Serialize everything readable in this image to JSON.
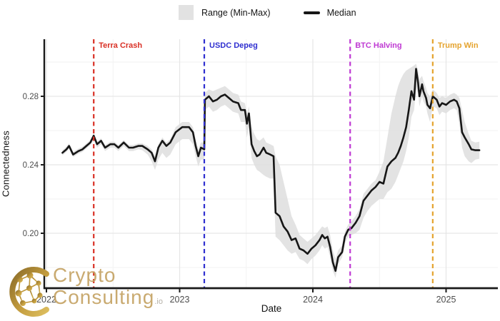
{
  "chart_data": {
    "type": "line",
    "title": "",
    "xlabel": "Date",
    "ylabel": "Connectedness",
    "x_unit": "decimal_year",
    "xlim": [
      2021.98,
      2025.39
    ],
    "ylim": [
      0.168,
      0.313
    ],
    "grid": true,
    "x_ticks": [
      {
        "v": 2022,
        "label": "2022"
      },
      {
        "v": 2023,
        "label": "2023"
      },
      {
        "v": 2024,
        "label": "2024"
      },
      {
        "v": 2025,
        "label": "2025"
      }
    ],
    "x_minor_ticks": [
      2022.5,
      2023.5,
      2024.5
    ],
    "y_ticks": [
      {
        "v": 0.2,
        "label": "0.20"
      },
      {
        "v": 0.24,
        "label": "0.24"
      },
      {
        "v": 0.28,
        "label": "0.28"
      }
    ],
    "y_minor_ticks": [
      0.18,
      0.22,
      0.26,
      0.3
    ],
    "legend": {
      "position": "top",
      "range_label": "Range (Min-Max)",
      "median_label": "Median"
    },
    "style": {
      "median_color": "#161616",
      "band_color": "#dedede",
      "grid_major": "#e6e6e6",
      "grid_minor": "#f2f2f2",
      "axis_color": "#1a1a1a",
      "tick_label_color": "#4d4d4d"
    },
    "events": [
      {
        "label": "Terra Crash",
        "year": 2022.355,
        "color": "#d93025"
      },
      {
        "label": "USDC Depeg",
        "year": 2023.185,
        "color": "#2f2fd0"
      },
      {
        "label": "BTC Halving",
        "year": 2024.28,
        "color": "#bf3ad3"
      },
      {
        "label": "Trump Win",
        "year": 2024.9,
        "color": "#e5a32e"
      }
    ],
    "series_format": [
      "year",
      "min",
      "median",
      "max"
    ],
    "points": [
      [
        2022.12,
        0.2455,
        0.247,
        0.2485
      ],
      [
        2022.15,
        0.2475,
        0.249,
        0.2505
      ],
      [
        2022.17,
        0.2495,
        0.251,
        0.2525
      ],
      [
        2022.2,
        0.2445,
        0.246,
        0.2475
      ],
      [
        2022.24,
        0.2465,
        0.248,
        0.2495
      ],
      [
        2022.27,
        0.2475,
        0.249,
        0.2505
      ],
      [
        2022.3,
        0.2495,
        0.251,
        0.2525
      ],
      [
        2022.33,
        0.2515,
        0.253,
        0.2545
      ],
      [
        2022.355,
        0.255,
        0.257,
        0.2585
      ],
      [
        2022.38,
        0.25,
        0.252,
        0.2535
      ],
      [
        2022.41,
        0.252,
        0.254,
        0.2555
      ],
      [
        2022.44,
        0.248,
        0.25,
        0.2515
      ],
      [
        2022.48,
        0.25,
        0.252,
        0.2535
      ],
      [
        2022.51,
        0.25,
        0.252,
        0.2535
      ],
      [
        2022.54,
        0.248,
        0.25,
        0.2515
      ],
      [
        2022.58,
        0.251,
        0.253,
        0.2545
      ],
      [
        2022.62,
        0.248,
        0.25,
        0.2515
      ],
      [
        2022.65,
        0.248,
        0.25,
        0.2515
      ],
      [
        2022.69,
        0.249,
        0.251,
        0.2525
      ],
      [
        2022.72,
        0.2485,
        0.251,
        0.2525
      ],
      [
        2022.76,
        0.246,
        0.249,
        0.251
      ],
      [
        2022.79,
        0.242,
        0.247,
        0.249
      ],
      [
        2022.815,
        0.237,
        0.242,
        0.245
      ],
      [
        2022.84,
        0.243,
        0.25,
        0.252
      ],
      [
        2022.87,
        0.247,
        0.254,
        0.256
      ],
      [
        2022.9,
        0.244,
        0.251,
        0.253
      ],
      [
        2022.93,
        0.246,
        0.253,
        0.255
      ],
      [
        2022.97,
        0.252,
        0.259,
        0.262
      ],
      [
        2023.02,
        0.255,
        0.262,
        0.265
      ],
      [
        2023.07,
        0.255,
        0.262,
        0.265
      ],
      [
        2023.1,
        0.252,
        0.259,
        0.262
      ],
      [
        2023.12,
        0.245,
        0.251,
        0.255
      ],
      [
        2023.14,
        0.239,
        0.245,
        0.249
      ],
      [
        2023.16,
        0.243,
        0.25,
        0.253
      ],
      [
        2023.185,
        0.243,
        0.249,
        0.253
      ],
      [
        2023.19,
        0.272,
        0.278,
        0.282
      ],
      [
        2023.22,
        0.274,
        0.28,
        0.284
      ],
      [
        2023.25,
        0.271,
        0.277,
        0.283
      ],
      [
        2023.28,
        0.272,
        0.278,
        0.284
      ],
      [
        2023.31,
        0.274,
        0.28,
        0.285
      ],
      [
        2023.34,
        0.275,
        0.281,
        0.286
      ],
      [
        2023.37,
        0.273,
        0.279,
        0.284
      ],
      [
        2023.4,
        0.271,
        0.277,
        0.282
      ],
      [
        2023.44,
        0.27,
        0.276,
        0.281
      ],
      [
        2023.46,
        0.265,
        0.272,
        0.277
      ],
      [
        2023.49,
        0.265,
        0.272,
        0.276
      ],
      [
        2023.505,
        0.256,
        0.264,
        0.27
      ],
      [
        2023.52,
        0.262,
        0.27,
        0.274
      ],
      [
        2023.54,
        0.244,
        0.252,
        0.262
      ],
      [
        2023.56,
        0.24,
        0.248,
        0.258
      ],
      [
        2023.58,
        0.237,
        0.245,
        0.255
      ],
      [
        2023.6,
        0.236,
        0.246,
        0.254
      ],
      [
        2023.63,
        0.234,
        0.25,
        0.256
      ],
      [
        2023.65,
        0.233,
        0.247,
        0.253
      ],
      [
        2023.68,
        0.232,
        0.246,
        0.252
      ],
      [
        2023.705,
        0.232,
        0.245,
        0.251
      ],
      [
        2023.72,
        0.198,
        0.212,
        0.245
      ],
      [
        2023.75,
        0.196,
        0.21,
        0.24
      ],
      [
        2023.78,
        0.193,
        0.204,
        0.23
      ],
      [
        2023.81,
        0.19,
        0.201,
        0.22
      ],
      [
        2023.84,
        0.188,
        0.196,
        0.21
      ],
      [
        2023.87,
        0.189,
        0.197,
        0.205
      ],
      [
        2023.9,
        0.185,
        0.191,
        0.199
      ],
      [
        2023.93,
        0.184,
        0.19,
        0.197
      ],
      [
        2023.96,
        0.182,
        0.188,
        0.195
      ],
      [
        2023.99,
        0.185,
        0.191,
        0.197
      ],
      [
        2024.02,
        0.187,
        0.193,
        0.199
      ],
      [
        2024.05,
        0.19,
        0.196,
        0.202
      ],
      [
        2024.07,
        0.193,
        0.199,
        0.204
      ],
      [
        2024.09,
        0.191,
        0.197,
        0.203
      ],
      [
        2024.11,
        0.192,
        0.198,
        0.204
      ],
      [
        2024.13,
        0.186,
        0.192,
        0.199
      ],
      [
        2024.15,
        0.178,
        0.183,
        0.19
      ],
      [
        2024.17,
        0.174,
        0.178,
        0.185
      ],
      [
        2024.19,
        0.182,
        0.186,
        0.19
      ],
      [
        2024.22,
        0.186,
        0.189,
        0.193
      ],
      [
        2024.24,
        0.194,
        0.198,
        0.201
      ],
      [
        2024.265,
        0.198,
        0.202,
        0.205
      ],
      [
        2024.29,
        0.199,
        0.203,
        0.207
      ],
      [
        2024.32,
        0.2,
        0.206,
        0.21
      ],
      [
        2024.35,
        0.202,
        0.21,
        0.214
      ],
      [
        2024.38,
        0.209,
        0.219,
        0.223
      ],
      [
        2024.41,
        0.213,
        0.222,
        0.226
      ],
      [
        2024.44,
        0.216,
        0.225,
        0.229
      ],
      [
        2024.47,
        0.218,
        0.227,
        0.231
      ],
      [
        2024.5,
        0.22,
        0.23,
        0.236
      ],
      [
        2024.53,
        0.22,
        0.229,
        0.242
      ],
      [
        2024.56,
        0.224,
        0.239,
        0.256
      ],
      [
        2024.59,
        0.226,
        0.242,
        0.27
      ],
      [
        2024.62,
        0.23,
        0.244,
        0.28
      ],
      [
        2024.64,
        0.234,
        0.247,
        0.286
      ],
      [
        2024.66,
        0.238,
        0.251,
        0.29
      ],
      [
        2024.68,
        0.242,
        0.256,
        0.293
      ],
      [
        2024.7,
        0.248,
        0.262,
        0.295
      ],
      [
        2024.72,
        0.256,
        0.272,
        0.296
      ],
      [
        2024.74,
        0.268,
        0.283,
        0.297
      ],
      [
        2024.76,
        0.272,
        0.278,
        0.298
      ],
      [
        2024.775,
        0.284,
        0.296,
        0.299
      ],
      [
        2024.79,
        0.282,
        0.288,
        0.295
      ],
      [
        2024.8,
        0.274,
        0.28,
        0.29
      ],
      [
        2024.82,
        0.28,
        0.287,
        0.292
      ],
      [
        2024.83,
        0.277,
        0.283,
        0.289
      ],
      [
        2024.85,
        0.274,
        0.279,
        0.285
      ],
      [
        2024.86,
        0.27,
        0.275,
        0.282
      ],
      [
        2024.88,
        0.265,
        0.273,
        0.28
      ],
      [
        2024.9,
        0.274,
        0.28,
        0.284
      ],
      [
        2024.93,
        0.273,
        0.278,
        0.282
      ],
      [
        2024.95,
        0.269,
        0.274,
        0.279
      ],
      [
        2024.97,
        0.271,
        0.276,
        0.28
      ],
      [
        2025.0,
        0.27,
        0.275,
        0.279
      ],
      [
        2025.03,
        0.272,
        0.277,
        0.281
      ],
      [
        2025.06,
        0.273,
        0.278,
        0.282
      ],
      [
        2025.08,
        0.272,
        0.277,
        0.281
      ],
      [
        2025.1,
        0.264,
        0.273,
        0.279
      ],
      [
        2025.12,
        0.25,
        0.259,
        0.272
      ],
      [
        2025.14,
        0.245,
        0.256,
        0.265
      ],
      [
        2025.17,
        0.242,
        0.252,
        0.258
      ],
      [
        2025.19,
        0.241,
        0.249,
        0.254
      ],
      [
        2025.22,
        0.243,
        0.2485,
        0.253
      ],
      [
        2025.25,
        0.2435,
        0.2485,
        0.2535
      ]
    ]
  },
  "watermark": {
    "line1": "Crypto",
    "line2": "Consulting",
    "suffix": ".io",
    "color": "#c29e5c"
  }
}
